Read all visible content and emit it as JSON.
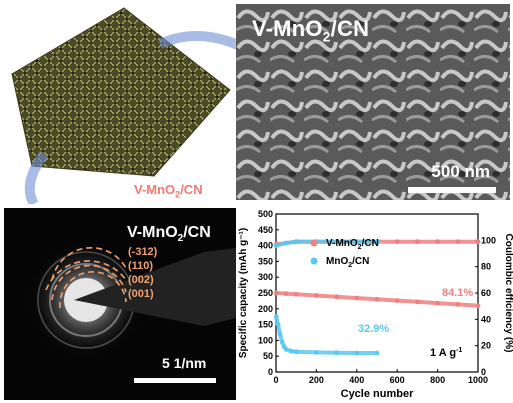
{
  "sem": {
    "title_main": "V-MnO",
    "title_sub": "2",
    "title_tail": "/CN",
    "scale_label": "500 nm"
  },
  "foam": {
    "label_main": "V-MnO",
    "label_sub": "2",
    "label_tail": "/CN"
  },
  "saed": {
    "title_main": "V-MnO",
    "title_sub": "2",
    "title_tail": "/CN",
    "hkl": [
      "(-312)",
      "(110)",
      "(002)",
      "(001)"
    ],
    "scale_label": "5 1/nm"
  },
  "chart_data": {
    "type": "scatter",
    "xlabel": "Cycle number",
    "ylabel_left": "Specific capacity (mAh g⁻¹)",
    "ylabel_right": "Coulombic efficiency (%)",
    "xlim": [
      0,
      1000
    ],
    "ylim_left": [
      0,
      500
    ],
    "ylim_right": [
      0,
      120
    ],
    "xticks": [
      0,
      200,
      400,
      600,
      800,
      1000
    ],
    "yticks_left": [
      0,
      50,
      100,
      150,
      200,
      250,
      300,
      350,
      400,
      450,
      500
    ],
    "yticks_right": [
      0,
      20,
      40,
      60,
      80,
      100
    ],
    "series": [
      {
        "name": "V-MnO2/CN",
        "color": "#f08080",
        "axis": "left",
        "x": [
          1,
          50,
          100,
          200,
          300,
          400,
          500,
          600,
          700,
          800,
          900,
          1000
        ],
        "y": [
          250,
          248,
          246,
          242,
          238,
          234,
          230,
          226,
          222,
          218,
          214,
          210
        ]
      },
      {
        "name": "MnO2/CN",
        "color": "#5bc8f0",
        "axis": "left",
        "x": [
          1,
          10,
          20,
          30,
          40,
          50,
          75,
          100,
          200,
          300,
          400,
          500
        ],
        "y": [
          175,
          150,
          120,
          95,
          80,
          72,
          66,
          64,
          62,
          61,
          60,
          60
        ]
      },
      {
        "name": "V-MnO2/CN CE",
        "color": "#f08080",
        "axis": "right",
        "x": [
          1,
          100,
          200,
          300,
          400,
          500,
          600,
          700,
          800,
          900,
          1000
        ],
        "y": [
          97,
          99,
          99,
          99,
          99,
          99,
          99,
          99,
          99,
          99,
          99
        ]
      },
      {
        "name": "MnO2/CN CE",
        "color": "#5bc8f0",
        "axis": "right",
        "x": [
          1,
          50,
          100,
          200,
          300,
          400,
          500
        ],
        "y": [
          96,
          98,
          99,
          99,
          99,
          99,
          99
        ]
      }
    ],
    "legend": [
      {
        "main": "V-MnO",
        "sub": "2",
        "tail": "/CN",
        "color": "#f08080"
      },
      {
        "main": "MnO",
        "sub": "2",
        "tail": "/CN",
        "color": "#5bc8f0"
      }
    ],
    "annotations": {
      "retention_v": "84.1%",
      "retention_m": "32.9%",
      "current": "1 A g",
      "current_sup": "-1"
    }
  }
}
